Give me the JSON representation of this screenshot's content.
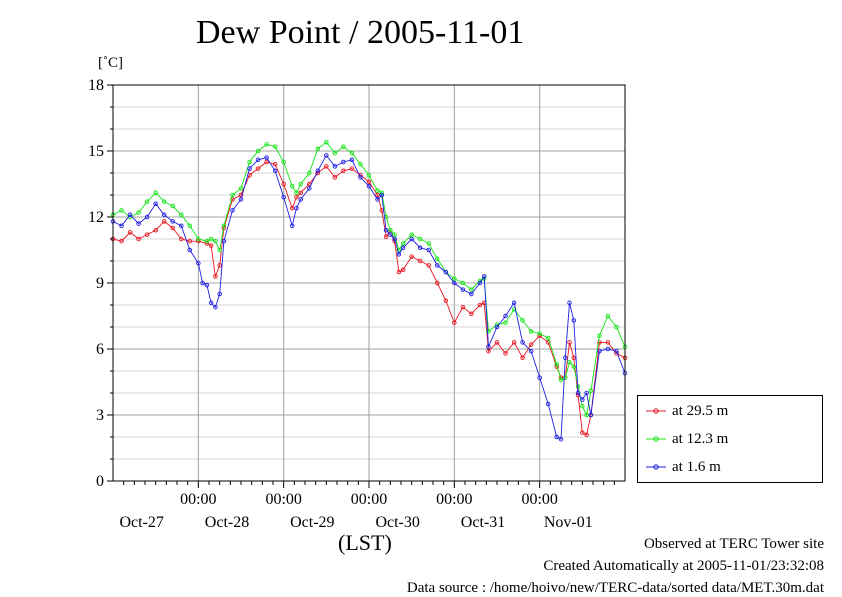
{
  "title": "Dew Point / 2005-11-01",
  "unit": "[˚C]",
  "xlabel": "(LST)",
  "notes": {
    "site": "Observed at TERC Tower site",
    "created": "Created Automatically at 2005-11-01/23:32:08",
    "source": "Data source : /home/hoivo/new/TERC-data/sorted  data/MET.30m.dat"
  },
  "colors": {
    "red": "#e8141e",
    "green": "#14e614",
    "blue": "#1e1ee6"
  },
  "chart_data": {
    "type": "line",
    "title": "Dew Point / 2005-11-01",
    "ylabel": "[˚C]",
    "xlabel": "(LST)",
    "ylim": [
      0,
      18
    ],
    "xlim": [
      0,
      6
    ],
    "yticks": [
      0,
      3,
      6,
      9,
      12,
      15,
      18
    ],
    "ytick_labels": [
      "0",
      "3",
      "6",
      "9",
      "12",
      "15",
      "18"
    ],
    "time_ticks": [
      1,
      2,
      3,
      4,
      5
    ],
    "time_labels": [
      "00:00",
      "00:00",
      "00:00",
      "00:00",
      "00:00"
    ],
    "date_labels": [
      {
        "label": "Oct-27",
        "x": 0.5
      },
      {
        "label": "Oct-28",
        "x": 1.5
      },
      {
        "label": "Oct-29",
        "x": 2.5
      },
      {
        "label": "Oct-30",
        "x": 3.5
      },
      {
        "label": "Oct-31",
        "x": 4.5
      },
      {
        "label": "Nov-01",
        "x": 5.5
      }
    ],
    "grid": true,
    "legend": "right",
    "series": [
      {
        "name": "at 29.5 m",
        "color": "#e8141e",
        "points": [
          [
            0.0,
            11.0
          ],
          [
            0.1,
            10.9
          ],
          [
            0.2,
            11.3
          ],
          [
            0.3,
            11.0
          ],
          [
            0.4,
            11.2
          ],
          [
            0.5,
            11.4
          ],
          [
            0.6,
            11.8
          ],
          [
            0.7,
            11.5
          ],
          [
            0.8,
            11.0
          ],
          [
            0.9,
            10.9
          ],
          [
            1.0,
            10.9
          ],
          [
            1.1,
            10.8
          ],
          [
            1.15,
            10.7
          ],
          [
            1.2,
            9.3
          ],
          [
            1.25,
            9.8
          ],
          [
            1.3,
            11.5
          ],
          [
            1.4,
            12.8
          ],
          [
            1.5,
            13.0
          ],
          [
            1.6,
            13.9
          ],
          [
            1.7,
            14.2
          ],
          [
            1.8,
            14.5
          ],
          [
            1.9,
            14.4
          ],
          [
            2.0,
            13.5
          ],
          [
            2.1,
            12.4
          ],
          [
            2.15,
            12.9
          ],
          [
            2.2,
            13.1
          ],
          [
            2.3,
            13.5
          ],
          [
            2.4,
            14.0
          ],
          [
            2.5,
            14.3
          ],
          [
            2.6,
            13.8
          ],
          [
            2.7,
            14.1
          ],
          [
            2.8,
            14.2
          ],
          [
            2.9,
            13.9
          ],
          [
            3.0,
            13.6
          ],
          [
            3.1,
            13.0
          ],
          [
            3.15,
            12.3
          ],
          [
            3.2,
            11.1
          ],
          [
            3.25,
            11.4
          ],
          [
            3.3,
            10.9
          ],
          [
            3.35,
            9.5
          ],
          [
            3.4,
            9.6
          ],
          [
            3.5,
            10.2
          ],
          [
            3.6,
            10.0
          ],
          [
            3.7,
            9.8
          ],
          [
            3.8,
            9.0
          ],
          [
            3.9,
            8.2
          ],
          [
            4.0,
            7.2
          ],
          [
            4.1,
            7.9
          ],
          [
            4.2,
            7.6
          ],
          [
            4.3,
            8.0
          ],
          [
            4.35,
            8.1
          ],
          [
            4.4,
            5.9
          ],
          [
            4.5,
            6.3
          ],
          [
            4.6,
            5.8
          ],
          [
            4.7,
            6.3
          ],
          [
            4.8,
            5.6
          ],
          [
            4.9,
            6.2
          ],
          [
            5.0,
            6.6
          ],
          [
            5.1,
            6.3
          ],
          [
            5.2,
            5.2
          ],
          [
            5.25,
            4.7
          ],
          [
            5.3,
            4.7
          ],
          [
            5.35,
            6.3
          ],
          [
            5.4,
            5.6
          ],
          [
            5.45,
            3.9
          ],
          [
            5.5,
            2.2
          ],
          [
            5.55,
            2.1
          ],
          [
            5.6,
            3.0
          ],
          [
            5.7,
            6.3
          ],
          [
            5.8,
            6.3
          ],
          [
            5.9,
            5.8
          ],
          [
            6.0,
            5.6
          ]
        ]
      },
      {
        "name": "at 12.3 m",
        "color": "#14e614",
        "points": [
          [
            0.0,
            12.1
          ],
          [
            0.1,
            12.3
          ],
          [
            0.2,
            12.0
          ],
          [
            0.3,
            12.2
          ],
          [
            0.4,
            12.7
          ],
          [
            0.5,
            13.1
          ],
          [
            0.6,
            12.7
          ],
          [
            0.7,
            12.5
          ],
          [
            0.8,
            12.1
          ],
          [
            0.9,
            11.6
          ],
          [
            1.0,
            11.0
          ],
          [
            1.1,
            10.9
          ],
          [
            1.15,
            11.0
          ],
          [
            1.2,
            10.9
          ],
          [
            1.25,
            10.5
          ],
          [
            1.3,
            11.6
          ],
          [
            1.4,
            13.0
          ],
          [
            1.5,
            13.3
          ],
          [
            1.6,
            14.5
          ],
          [
            1.7,
            15.0
          ],
          [
            1.8,
            15.3
          ],
          [
            1.9,
            15.2
          ],
          [
            2.0,
            14.5
          ],
          [
            2.1,
            13.4
          ],
          [
            2.15,
            13.1
          ],
          [
            2.2,
            13.5
          ],
          [
            2.3,
            14.0
          ],
          [
            2.4,
            15.1
          ],
          [
            2.5,
            15.4
          ],
          [
            2.6,
            14.9
          ],
          [
            2.7,
            15.2
          ],
          [
            2.8,
            14.9
          ],
          [
            2.9,
            14.4
          ],
          [
            3.0,
            13.9
          ],
          [
            3.1,
            13.2
          ],
          [
            3.15,
            13.1
          ],
          [
            3.2,
            12.0
          ],
          [
            3.25,
            11.4
          ],
          [
            3.3,
            11.2
          ],
          [
            3.35,
            10.5
          ],
          [
            3.4,
            10.8
          ],
          [
            3.5,
            11.2
          ],
          [
            3.6,
            11.0
          ],
          [
            3.7,
            10.8
          ],
          [
            3.8,
            10.1
          ],
          [
            3.9,
            9.5
          ],
          [
            4.0,
            9.2
          ],
          [
            4.1,
            9.0
          ],
          [
            4.2,
            8.7
          ],
          [
            4.3,
            9.1
          ],
          [
            4.35,
            9.2
          ],
          [
            4.4,
            6.8
          ],
          [
            4.5,
            7.1
          ],
          [
            4.6,
            7.2
          ],
          [
            4.7,
            7.8
          ],
          [
            4.8,
            7.3
          ],
          [
            4.9,
            6.8
          ],
          [
            5.0,
            6.7
          ],
          [
            5.1,
            6.5
          ],
          [
            5.2,
            5.3
          ],
          [
            5.25,
            4.6
          ],
          [
            5.3,
            4.7
          ],
          [
            5.35,
            5.4
          ],
          [
            5.4,
            5.2
          ],
          [
            5.45,
            4.3
          ],
          [
            5.5,
            3.4
          ],
          [
            5.55,
            3.0
          ],
          [
            5.6,
            4.1
          ],
          [
            5.7,
            6.6
          ],
          [
            5.8,
            7.5
          ],
          [
            5.9,
            7.0
          ],
          [
            6.0,
            6.1
          ]
        ]
      },
      {
        "name": "at 1.6 m",
        "color": "#1e1ee6",
        "points": [
          [
            0.0,
            11.8
          ],
          [
            0.1,
            11.6
          ],
          [
            0.2,
            12.1
          ],
          [
            0.3,
            11.7
          ],
          [
            0.4,
            12.0
          ],
          [
            0.5,
            12.6
          ],
          [
            0.6,
            12.1
          ],
          [
            0.7,
            11.8
          ],
          [
            0.8,
            11.6
          ],
          [
            0.9,
            10.5
          ],
          [
            1.0,
            9.9
          ],
          [
            1.05,
            9.0
          ],
          [
            1.1,
            8.9
          ],
          [
            1.15,
            8.1
          ],
          [
            1.2,
            7.9
          ],
          [
            1.25,
            8.5
          ],
          [
            1.3,
            10.9
          ],
          [
            1.4,
            12.3
          ],
          [
            1.5,
            12.8
          ],
          [
            1.6,
            14.2
          ],
          [
            1.7,
            14.6
          ],
          [
            1.8,
            14.7
          ],
          [
            1.9,
            14.1
          ],
          [
            2.0,
            12.9
          ],
          [
            2.1,
            11.6
          ],
          [
            2.15,
            12.4
          ],
          [
            2.2,
            12.8
          ],
          [
            2.3,
            13.3
          ],
          [
            2.4,
            14.1
          ],
          [
            2.5,
            14.8
          ],
          [
            2.6,
            14.3
          ],
          [
            2.7,
            14.5
          ],
          [
            2.8,
            14.6
          ],
          [
            2.9,
            13.8
          ],
          [
            3.0,
            13.4
          ],
          [
            3.1,
            12.8
          ],
          [
            3.15,
            13.0
          ],
          [
            3.2,
            11.4
          ],
          [
            3.25,
            11.2
          ],
          [
            3.3,
            11.0
          ],
          [
            3.35,
            10.3
          ],
          [
            3.4,
            10.6
          ],
          [
            3.5,
            11.0
          ],
          [
            3.6,
            10.6
          ],
          [
            3.7,
            10.5
          ],
          [
            3.8,
            9.8
          ],
          [
            3.9,
            9.5
          ],
          [
            4.0,
            9.0
          ],
          [
            4.1,
            8.7
          ],
          [
            4.2,
            8.5
          ],
          [
            4.3,
            9.0
          ],
          [
            4.35,
            9.3
          ],
          [
            4.4,
            6.1
          ],
          [
            4.5,
            7.0
          ],
          [
            4.6,
            7.5
          ],
          [
            4.7,
            8.1
          ],
          [
            4.8,
            6.3
          ],
          [
            4.9,
            5.9
          ],
          [
            5.0,
            4.7
          ],
          [
            5.1,
            3.5
          ],
          [
            5.2,
            2.0
          ],
          [
            5.25,
            1.9
          ],
          [
            5.3,
            5.6
          ],
          [
            5.35,
            8.1
          ],
          [
            5.4,
            7.3
          ],
          [
            5.45,
            4.0
          ],
          [
            5.5,
            3.7
          ],
          [
            5.55,
            4.0
          ],
          [
            5.6,
            3.0
          ],
          [
            5.7,
            5.9
          ],
          [
            5.8,
            6.0
          ],
          [
            5.9,
            5.9
          ],
          [
            6.0,
            4.9
          ]
        ]
      }
    ]
  }
}
